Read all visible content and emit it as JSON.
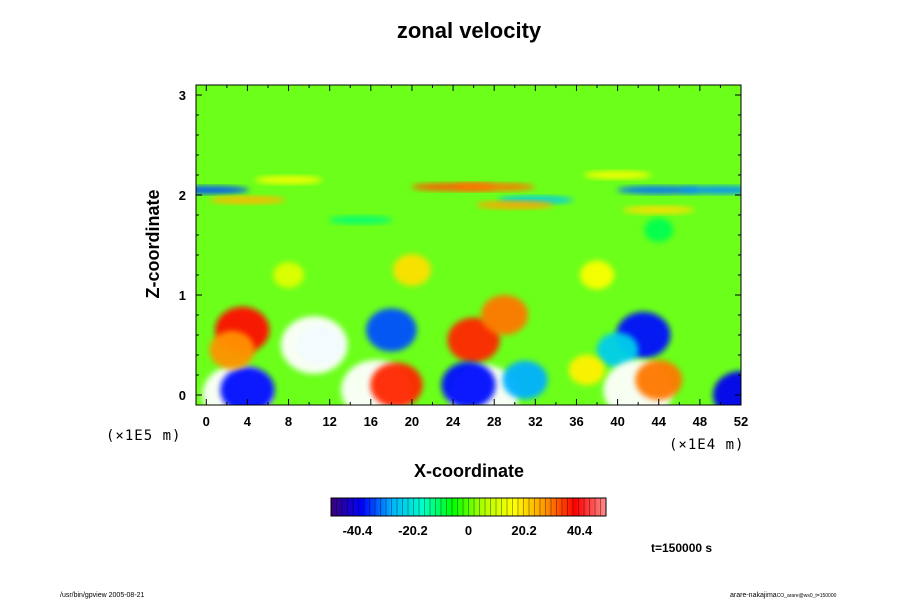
{
  "chart_data": {
    "type": "heatmap",
    "title": "zonal velocity",
    "xlabel": "X-coordinate",
    "ylabel": "Z-coordinate",
    "x_scale_label": "(×1E4 m)",
    "y_scale_label": "(×1E5 m)",
    "xlim": [
      -1,
      52
    ],
    "ylim": [
      -0.1,
      3.1
    ],
    "x_ticks": [
      "0",
      "4",
      "8",
      "12",
      "16",
      "20",
      "24",
      "28",
      "32",
      "36",
      "40",
      "44",
      "48",
      "52"
    ],
    "x_tick_values": [
      0,
      4,
      8,
      12,
      16,
      20,
      24,
      28,
      32,
      36,
      40,
      44,
      48,
      52
    ],
    "y_ticks": [
      "0",
      "1",
      "2",
      "3"
    ],
    "y_tick_values": [
      0,
      1,
      2,
      3
    ],
    "colorbar": {
      "range": [
        -50,
        50
      ],
      "tick_labels": [
        "-40.4",
        "-20.2",
        "0",
        "20.2",
        "40.4"
      ],
      "tick_values": [
        -40.4,
        -20.2,
        0,
        20.2,
        40.4
      ],
      "colormap": [
        "#3a0078",
        "#0000ff",
        "#00b4ff",
        "#00ffc8",
        "#00ff00",
        "#b4ff00",
        "#ffff00",
        "#ff9600",
        "#ff0000",
        "#ff8c8c"
      ]
    },
    "features": [
      {
        "x": 3,
        "z": 0.0,
        "value": -55
      },
      {
        "x": 4,
        "z": 0.05,
        "value": -38
      },
      {
        "x": 3.5,
        "z": 0.65,
        "value": 38
      },
      {
        "x": 2.5,
        "z": 0.45,
        "value": 28
      },
      {
        "x": 11,
        "z": 0.5,
        "value": -28
      },
      {
        "x": 10.5,
        "z": 0.5,
        "value": -52
      },
      {
        "x": 18,
        "z": 0.65,
        "value": -34
      },
      {
        "x": 16.5,
        "z": 0.05,
        "value": 55
      },
      {
        "x": 18.5,
        "z": 0.1,
        "value": 36
      },
      {
        "x": 26,
        "z": 0.55,
        "value": 36
      },
      {
        "x": 29,
        "z": 0.8,
        "value": 30
      },
      {
        "x": 27,
        "z": 0.0,
        "value": -55
      },
      {
        "x": 25.5,
        "z": 0.1,
        "value": -38
      },
      {
        "x": 31,
        "z": 0.15,
        "value": -28
      },
      {
        "x": 42.5,
        "z": 0.6,
        "value": -38
      },
      {
        "x": 40,
        "z": 0.45,
        "value": -24
      },
      {
        "x": 42,
        "z": 0.05,
        "value": 55
      },
      {
        "x": 44,
        "z": 0.15,
        "value": 30
      },
      {
        "x": 37,
        "z": 0.25,
        "value": 18
      },
      {
        "x": 52,
        "z": 0.0,
        "value": -40
      },
      {
        "x": 24,
        "z": 2.08,
        "value": 32
      },
      {
        "x": 28,
        "z": 2.08,
        "value": 30
      },
      {
        "x": 0,
        "z": 2.05,
        "value": -34
      },
      {
        "x": 4,
        "z": 1.95,
        "value": 24
      },
      {
        "x": 32,
        "z": 1.95,
        "value": -24
      },
      {
        "x": 44,
        "z": 2.05,
        "value": -32
      },
      {
        "x": 50,
        "z": 2.05,
        "value": -30
      },
      {
        "x": 30,
        "z": 1.9,
        "value": 26
      },
      {
        "x": 8,
        "z": 2.15,
        "value": 16
      },
      {
        "x": 44,
        "z": 1.85,
        "value": 20
      },
      {
        "x": 40,
        "z": 2.2,
        "value": 16
      },
      {
        "x": 20,
        "z": 1.25,
        "value": 20
      },
      {
        "x": 38,
        "z": 1.2,
        "value": 16
      },
      {
        "x": 8,
        "z": 1.2,
        "value": 12
      },
      {
        "x": 15,
        "z": 1.75,
        "value": -12
      },
      {
        "x": 44,
        "z": 1.65,
        "value": -10
      }
    ]
  },
  "time_label": "t=150000 s",
  "footer_left": "/usr/bin/gpview 2005-08-21",
  "footer_right": "arare-nakajima",
  "footer_right_sub": "CO_arare@ws0_t=150000"
}
